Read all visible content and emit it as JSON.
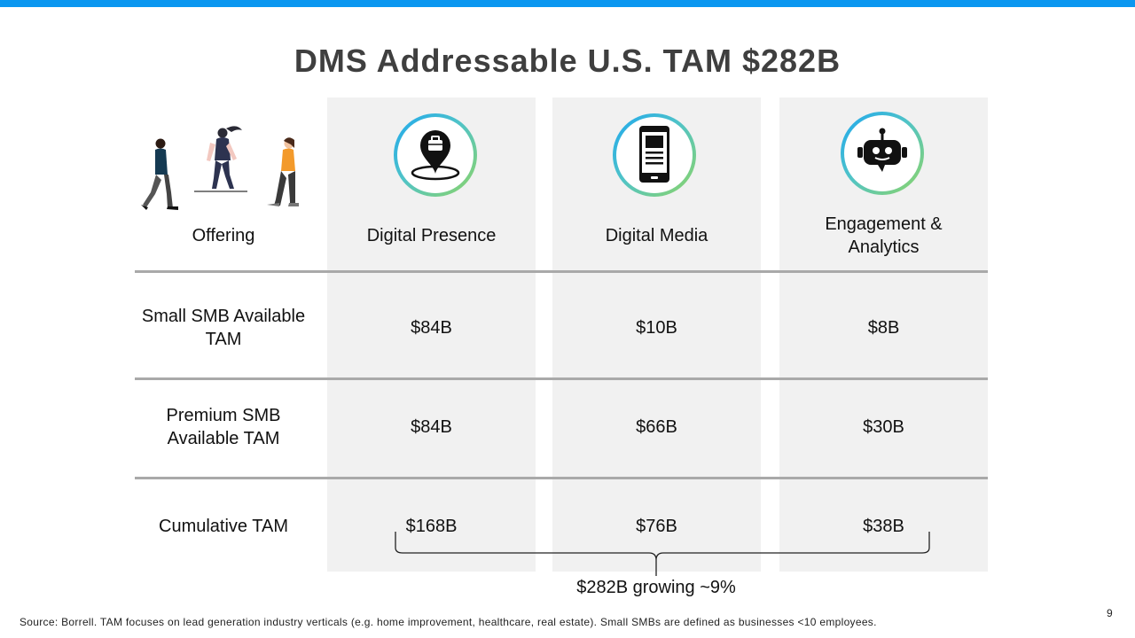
{
  "title": "DMS Addressable U.S. TAM $282B",
  "accent_color": "#0b97f0",
  "icons": {
    "people": "people-walking-illustration",
    "presence": "location-pin-briefcase-icon",
    "media": "smartphone-icon",
    "engagement": "chatbot-icon"
  },
  "table": {
    "headers": [
      "Offering",
      "Digital Presence",
      "Digital Media",
      "Engagement & Analytics"
    ],
    "rows": [
      {
        "label": "Small SMB Available TAM",
        "values": [
          "$84B",
          "$10B",
          "$8B"
        ]
      },
      {
        "label": "Premium SMB Available TAM",
        "values": [
          "$84B",
          "$66B",
          "$30B"
        ]
      },
      {
        "label": "Cumulative TAM",
        "values": [
          "$168B",
          "$76B",
          "$38B"
        ]
      }
    ]
  },
  "brace_label": "$282B  growing ~9%",
  "source": "Source:  Borrell.  TAM focuses on lead generation industry verticals (e.g. home improvement, healthcare,  real estate).   Small SMBs are defined as businesses <10 employees.",
  "page_number": "9"
}
